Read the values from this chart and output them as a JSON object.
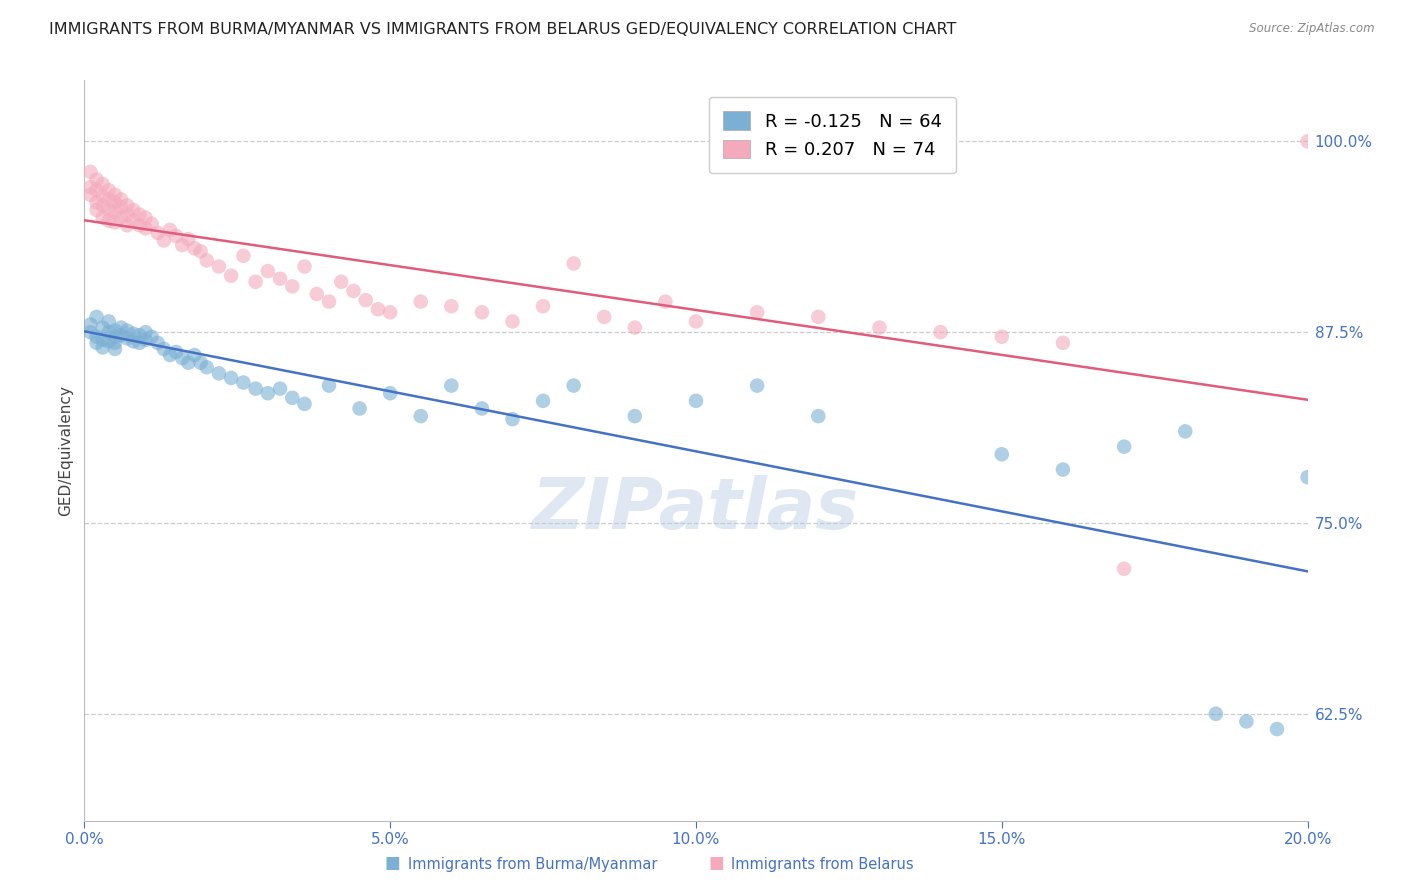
{
  "title": "IMMIGRANTS FROM BURMA/MYANMAR VS IMMIGRANTS FROM BELARUS GED/EQUIVALENCY CORRELATION CHART",
  "source": "Source: ZipAtlas.com",
  "ylabel": "GED/Equivalency",
  "xlim": [
    0.0,
    0.2
  ],
  "ylim": [
    0.555,
    1.04
  ],
  "yticks": [
    0.625,
    0.75,
    0.875,
    1.0
  ],
  "ytick_labels": [
    "62.5%",
    "75.0%",
    "87.5%",
    "100.0%"
  ],
  "xticks": [
    0.0,
    0.05,
    0.1,
    0.15,
    0.2
  ],
  "xtick_labels": [
    "0.0%",
    "5.0%",
    "10.0%",
    "15.0%",
    "20.0%"
  ],
  "series": [
    {
      "name": "Immigrants from Burma/Myanmar",
      "R": -0.125,
      "N": 64,
      "color": "#7BAFD4",
      "line_color": "#4472C4",
      "x": [
        0.001,
        0.001,
        0.002,
        0.002,
        0.002,
        0.003,
        0.003,
        0.003,
        0.004,
        0.004,
        0.004,
        0.005,
        0.005,
        0.005,
        0.005,
        0.006,
        0.006,
        0.007,
        0.007,
        0.008,
        0.008,
        0.009,
        0.009,
        0.01,
        0.01,
        0.011,
        0.012,
        0.013,
        0.014,
        0.015,
        0.016,
        0.017,
        0.018,
        0.019,
        0.02,
        0.022,
        0.024,
        0.026,
        0.028,
        0.03,
        0.032,
        0.034,
        0.036,
        0.04,
        0.045,
        0.05,
        0.055,
        0.06,
        0.065,
        0.07,
        0.075,
        0.08,
        0.09,
        0.1,
        0.11,
        0.12,
        0.15,
        0.16,
        0.17,
        0.18,
        0.185,
        0.19,
        0.195,
        0.2
      ],
      "y": [
        0.88,
        0.875,
        0.885,
        0.872,
        0.868,
        0.878,
        0.87,
        0.865,
        0.882,
        0.875,
        0.869,
        0.876,
        0.872,
        0.868,
        0.864,
        0.878,
        0.873,
        0.876,
        0.871,
        0.874,
        0.869,
        0.873,
        0.868,
        0.875,
        0.87,
        0.872,
        0.868,
        0.864,
        0.86,
        0.862,
        0.858,
        0.855,
        0.86,
        0.855,
        0.852,
        0.848,
        0.845,
        0.842,
        0.838,
        0.835,
        0.838,
        0.832,
        0.828,
        0.84,
        0.825,
        0.835,
        0.82,
        0.84,
        0.825,
        0.818,
        0.83,
        0.84,
        0.82,
        0.83,
        0.84,
        0.82,
        0.795,
        0.785,
        0.8,
        0.81,
        0.625,
        0.62,
        0.615,
        0.78
      ]
    },
    {
      "name": "Immigrants from Belarus",
      "R": 0.207,
      "N": 74,
      "color": "#F4AABC",
      "line_color": "#E05C7A",
      "x": [
        0.001,
        0.001,
        0.001,
        0.002,
        0.002,
        0.002,
        0.002,
        0.003,
        0.003,
        0.003,
        0.003,
        0.004,
        0.004,
        0.004,
        0.004,
        0.005,
        0.005,
        0.005,
        0.005,
        0.006,
        0.006,
        0.006,
        0.007,
        0.007,
        0.007,
        0.008,
        0.008,
        0.009,
        0.009,
        0.01,
        0.01,
        0.011,
        0.012,
        0.013,
        0.014,
        0.015,
        0.016,
        0.017,
        0.018,
        0.019,
        0.02,
        0.022,
        0.024,
        0.026,
        0.028,
        0.03,
        0.032,
        0.034,
        0.036,
        0.038,
        0.04,
        0.042,
        0.044,
        0.046,
        0.048,
        0.05,
        0.055,
        0.06,
        0.065,
        0.07,
        0.075,
        0.08,
        0.085,
        0.09,
        0.095,
        0.1,
        0.11,
        0.12,
        0.13,
        0.14,
        0.15,
        0.16,
        0.17,
        0.2
      ],
      "y": [
        0.98,
        0.97,
        0.965,
        0.975,
        0.968,
        0.96,
        0.955,
        0.972,
        0.964,
        0.958,
        0.95,
        0.968,
        0.962,
        0.955,
        0.948,
        0.965,
        0.96,
        0.954,
        0.947,
        0.962,
        0.957,
        0.95,
        0.958,
        0.952,
        0.945,
        0.955,
        0.948,
        0.952,
        0.945,
        0.95,
        0.943,
        0.946,
        0.94,
        0.935,
        0.942,
        0.938,
        0.932,
        0.936,
        0.93,
        0.928,
        0.922,
        0.918,
        0.912,
        0.925,
        0.908,
        0.915,
        0.91,
        0.905,
        0.918,
        0.9,
        0.895,
        0.908,
        0.902,
        0.896,
        0.89,
        0.888,
        0.895,
        0.892,
        0.888,
        0.882,
        0.892,
        0.92,
        0.885,
        0.878,
        0.895,
        0.882,
        0.888,
        0.885,
        0.878,
        0.875,
        0.872,
        0.868,
        0.72,
        1.0
      ]
    }
  ],
  "background_color": "#FFFFFF",
  "grid_color": "#CCCCCC",
  "title_fontsize": 11.5,
  "axis_label_fontsize": 11,
  "tick_fontsize": 11,
  "legend_fontsize": 13,
  "watermark": "ZIPatlas",
  "watermark_color": "#B8CCE4"
}
